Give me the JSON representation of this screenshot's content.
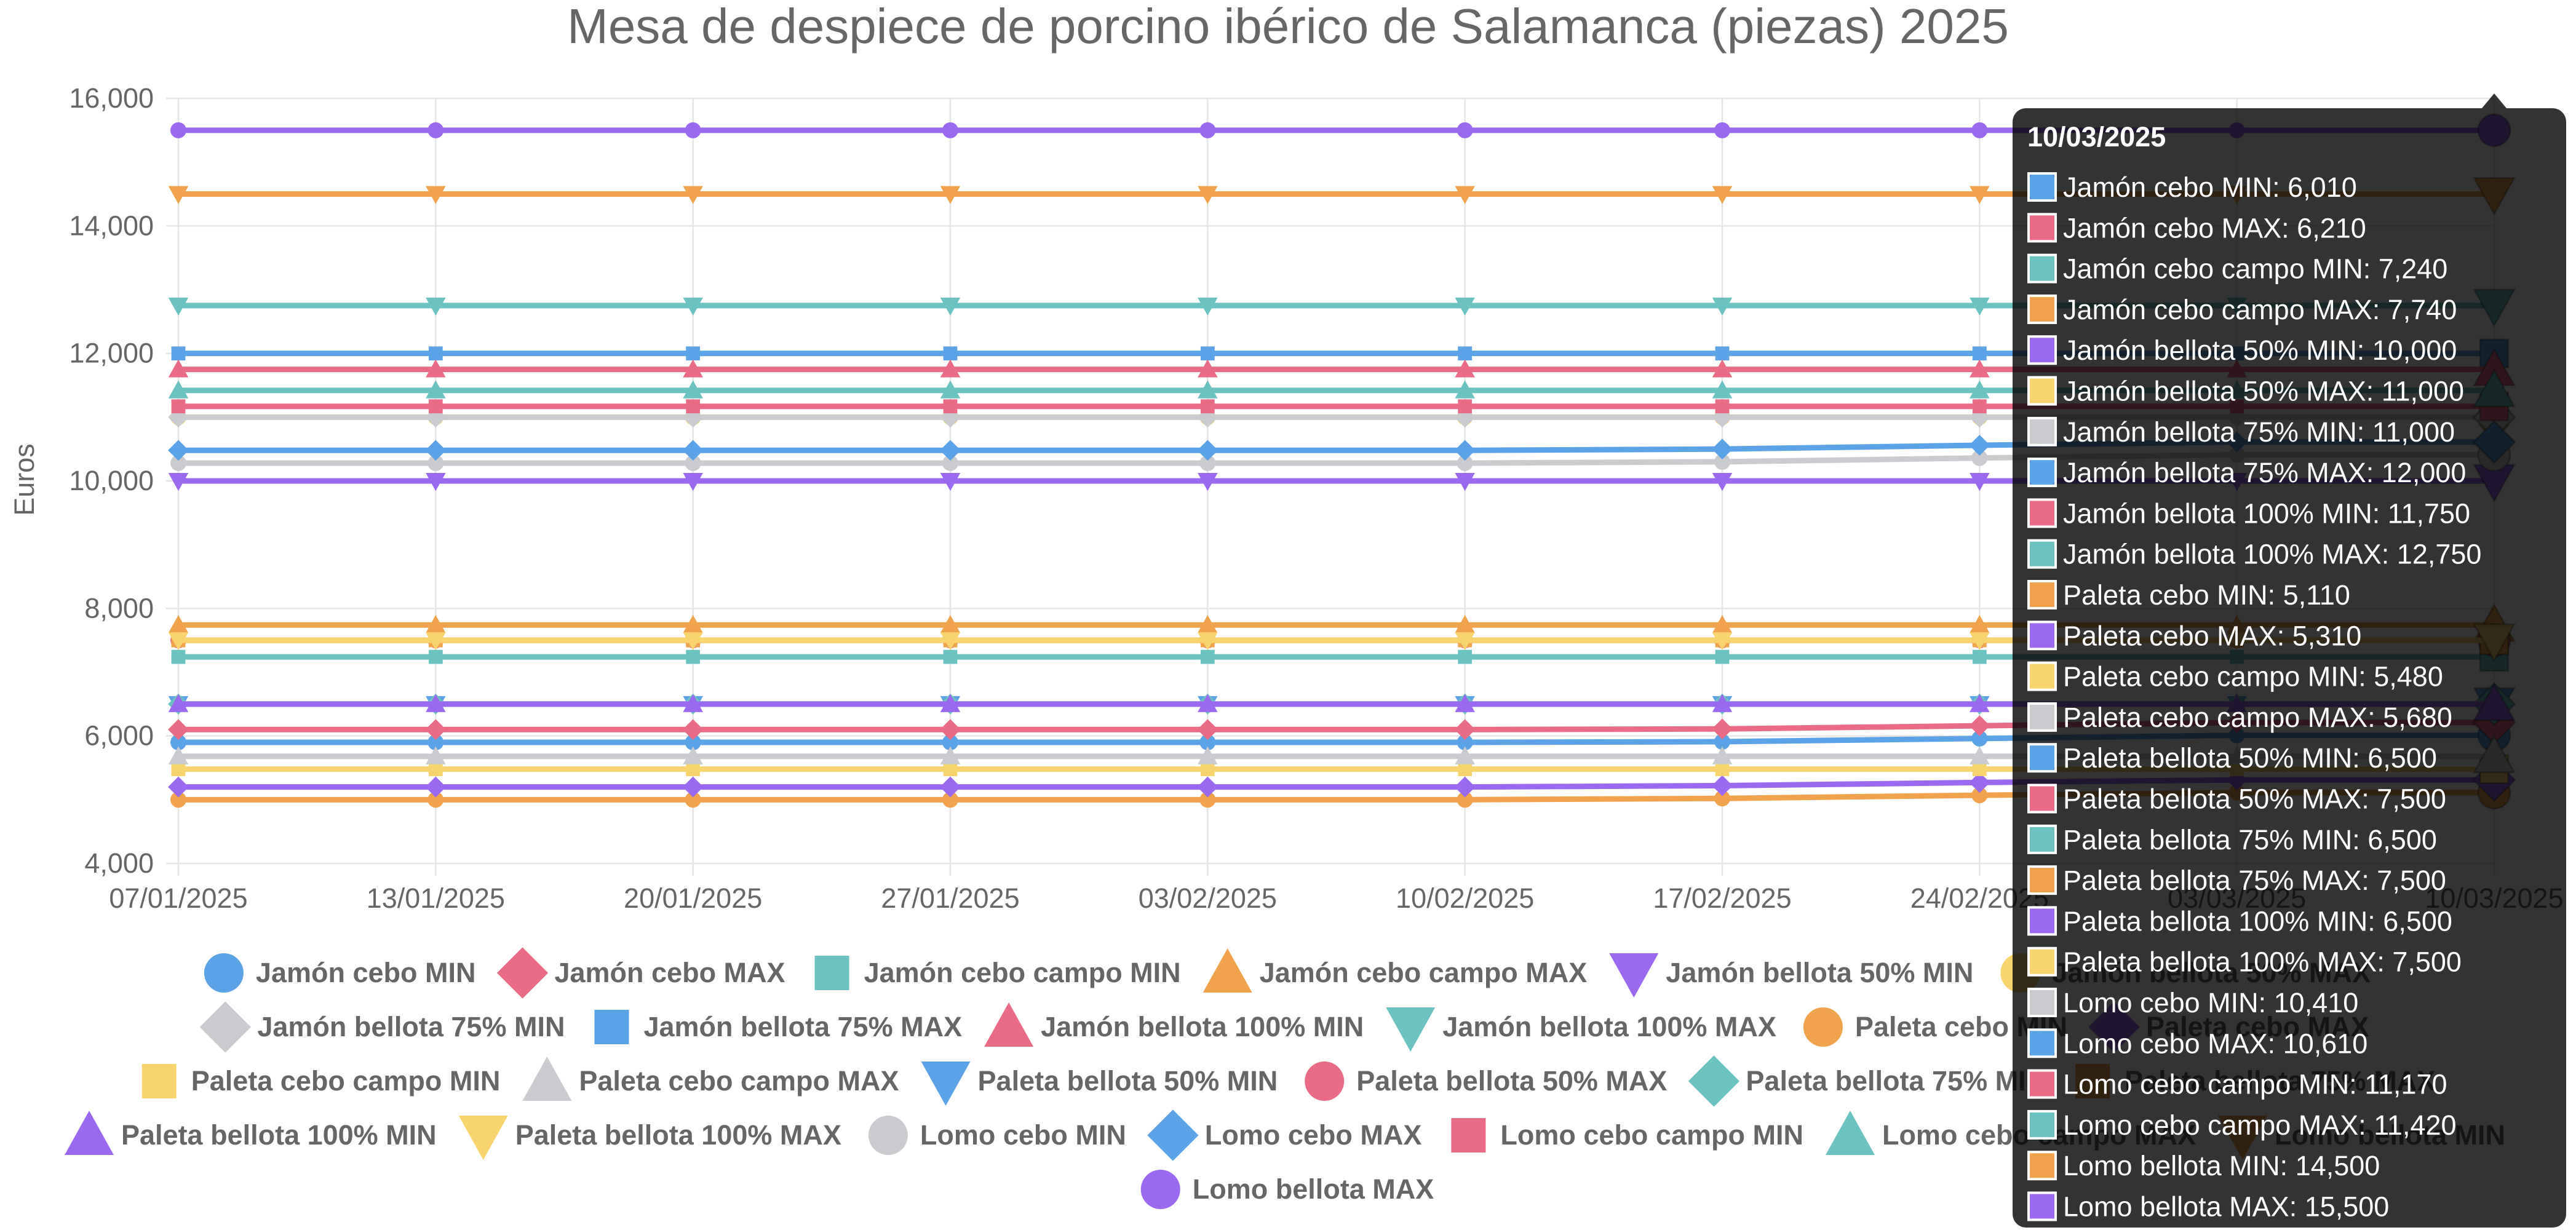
{
  "colors": {
    "blue": "#5ba2e6",
    "red": "#ea6b85",
    "teal": "#6cc1c1",
    "orange": "#f0a24c",
    "purple": "#9b69ef",
    "yellow": "#f9d36e",
    "grey": "#cacbcf",
    "text": "#666666",
    "grid": "#e5e5e5",
    "tooltip_bg": "#000000"
  },
  "chart_data": {
    "type": "line",
    "title": "Mesa de despiece de porcino ibérico de Salamanca (piezas) 2025",
    "ylabel": "Euros",
    "xlabel": "",
    "ylim": [
      4000,
      16000
    ],
    "y_ticks": [
      4000,
      6000,
      8000,
      10000,
      12000,
      14000,
      16000
    ],
    "y_tick_labels": [
      "4,000",
      "6,000",
      "8,000",
      "10,000",
      "12,000",
      "14,000",
      "16,000"
    ],
    "x": [
      "07/01/2025",
      "13/01/2025",
      "20/01/2025",
      "27/01/2025",
      "03/02/2025",
      "10/02/2025",
      "17/02/2025",
      "24/02/2025",
      "03/03/2025",
      "10/03/2025"
    ],
    "x_tick_labels": [
      "07/01/2025",
      "13/01/2025",
      "20/01/2025",
      "27/01/2025",
      "03/02/2025",
      "10/02/2025",
      "17/02/2025",
      "24/02/2025",
      "03/03/2025",
      "10/03/2025"
    ],
    "grid": true,
    "legend_position": "bottom",
    "series": [
      {
        "name": "Jamón cebo MIN",
        "color": "blue",
        "shape": "circle",
        "values": [
          5900,
          5900,
          5900,
          5900,
          5900,
          5900,
          5910,
          5960,
          6010,
          6010
        ]
      },
      {
        "name": "Jamón cebo MAX",
        "color": "red",
        "shape": "diamond",
        "values": [
          6100,
          6100,
          6100,
          6100,
          6100,
          6100,
          6110,
          6160,
          6210,
          6210
        ]
      },
      {
        "name": "Jamón cebo campo MIN",
        "color": "teal",
        "shape": "square",
        "values": [
          7240,
          7240,
          7240,
          7240,
          7240,
          7240,
          7240,
          7240,
          7240,
          7240
        ]
      },
      {
        "name": "Jamón cebo campo MAX",
        "color": "orange",
        "shape": "triangle",
        "values": [
          7740,
          7740,
          7740,
          7740,
          7740,
          7740,
          7740,
          7740,
          7740,
          7740
        ]
      },
      {
        "name": "Jamón bellota 50% MIN",
        "color": "purple",
        "shape": "triangle-down",
        "values": [
          10000,
          10000,
          10000,
          10000,
          10000,
          10000,
          10000,
          10000,
          10000,
          10000
        ]
      },
      {
        "name": "Jamón bellota 50% MAX",
        "color": "yellow",
        "shape": "circle",
        "values": [
          11000,
          11000,
          11000,
          11000,
          11000,
          11000,
          11000,
          11000,
          11000,
          11000
        ]
      },
      {
        "name": "Jamón bellota 75% MIN",
        "color": "grey",
        "shape": "diamond",
        "values": [
          11000,
          11000,
          11000,
          11000,
          11000,
          11000,
          11000,
          11000,
          11000,
          11000
        ]
      },
      {
        "name": "Jamón bellota 75% MAX",
        "color": "blue",
        "shape": "square",
        "values": [
          12000,
          12000,
          12000,
          12000,
          12000,
          12000,
          12000,
          12000,
          12000,
          12000
        ]
      },
      {
        "name": "Jamón bellota 100% MIN",
        "color": "red",
        "shape": "triangle",
        "values": [
          11750,
          11750,
          11750,
          11750,
          11750,
          11750,
          11750,
          11750,
          11750,
          11750
        ]
      },
      {
        "name": "Jamón bellota 100% MAX",
        "color": "teal",
        "shape": "triangle-down",
        "values": [
          12750,
          12750,
          12750,
          12750,
          12750,
          12750,
          12750,
          12750,
          12750,
          12750
        ]
      },
      {
        "name": "Paleta cebo MIN",
        "color": "orange",
        "shape": "circle",
        "values": [
          5000,
          5000,
          5000,
          5000,
          5000,
          5000,
          5020,
          5070,
          5110,
          5110
        ]
      },
      {
        "name": "Paleta cebo MAX",
        "color": "purple",
        "shape": "diamond",
        "values": [
          5200,
          5200,
          5200,
          5200,
          5200,
          5200,
          5220,
          5270,
          5310,
          5310
        ]
      },
      {
        "name": "Paleta cebo campo MIN",
        "color": "yellow",
        "shape": "square",
        "values": [
          5480,
          5480,
          5480,
          5480,
          5480,
          5480,
          5480,
          5480,
          5480,
          5480
        ]
      },
      {
        "name": "Paleta cebo campo MAX",
        "color": "grey",
        "shape": "triangle",
        "values": [
          5680,
          5680,
          5680,
          5680,
          5680,
          5680,
          5680,
          5680,
          5680,
          5680
        ]
      },
      {
        "name": "Paleta bellota 50% MIN",
        "color": "blue",
        "shape": "triangle-down",
        "values": [
          6500,
          6500,
          6500,
          6500,
          6500,
          6500,
          6500,
          6500,
          6500,
          6500
        ]
      },
      {
        "name": "Paleta bellota 50% MAX",
        "color": "red",
        "shape": "circle",
        "values": [
          7500,
          7500,
          7500,
          7500,
          7500,
          7500,
          7500,
          7500,
          7500,
          7500
        ]
      },
      {
        "name": "Paleta bellota 75% MIN",
        "color": "teal",
        "shape": "diamond",
        "values": [
          6500,
          6500,
          6500,
          6500,
          6500,
          6500,
          6500,
          6500,
          6500,
          6500
        ]
      },
      {
        "name": "Paleta bellota 75% MAX",
        "color": "orange",
        "shape": "square",
        "values": [
          7500,
          7500,
          7500,
          7500,
          7500,
          7500,
          7500,
          7500,
          7500,
          7500
        ]
      },
      {
        "name": "Paleta bellota 100% MIN",
        "color": "purple",
        "shape": "triangle",
        "values": [
          6500,
          6500,
          6500,
          6500,
          6500,
          6500,
          6500,
          6500,
          6500,
          6500
        ]
      },
      {
        "name": "Paleta bellota 100% MAX",
        "color": "yellow",
        "shape": "triangle-down",
        "values": [
          7500,
          7500,
          7500,
          7500,
          7500,
          7500,
          7500,
          7500,
          7500,
          7500
        ]
      },
      {
        "name": "Lomo cebo MIN",
        "color": "grey",
        "shape": "circle",
        "values": [
          10280,
          10280,
          10280,
          10280,
          10280,
          10280,
          10300,
          10360,
          10410,
          10410
        ]
      },
      {
        "name": "Lomo cebo MAX",
        "color": "blue",
        "shape": "diamond",
        "values": [
          10480,
          10480,
          10480,
          10480,
          10480,
          10480,
          10500,
          10560,
          10610,
          10610
        ]
      },
      {
        "name": "Lomo cebo campo MIN",
        "color": "red",
        "shape": "square",
        "values": [
          11170,
          11170,
          11170,
          11170,
          11170,
          11170,
          11170,
          11170,
          11170,
          11170
        ]
      },
      {
        "name": "Lomo cebo campo MAX",
        "color": "teal",
        "shape": "triangle",
        "values": [
          11420,
          11420,
          11420,
          11420,
          11420,
          11420,
          11420,
          11420,
          11420,
          11420
        ]
      },
      {
        "name": "Lomo bellota MIN",
        "color": "orange",
        "shape": "triangle-down",
        "values": [
          14500,
          14500,
          14500,
          14500,
          14500,
          14500,
          14500,
          14500,
          14500,
          14500
        ]
      },
      {
        "name": "Lomo bellota MAX",
        "color": "purple",
        "shape": "circle",
        "values": [
          15500,
          15500,
          15500,
          15500,
          15500,
          15500,
          15500,
          15500,
          15500,
          15500
        ]
      }
    ],
    "tooltip": {
      "title": "10/03/2025",
      "items": [
        {
          "label": "Jamón cebo MIN: 6,010",
          "color": "blue"
        },
        {
          "label": "Jamón cebo MAX: 6,210",
          "color": "red"
        },
        {
          "label": "Jamón cebo campo MIN: 7,240",
          "color": "teal"
        },
        {
          "label": "Jamón cebo campo MAX: 7,740",
          "color": "orange"
        },
        {
          "label": "Jamón bellota 50% MIN: 10,000",
          "color": "purple"
        },
        {
          "label": "Jamón bellota 50% MAX: 11,000",
          "color": "yellow"
        },
        {
          "label": "Jamón bellota 75% MIN: 11,000",
          "color": "grey"
        },
        {
          "label": "Jamón bellota 75% MAX: 12,000",
          "color": "blue"
        },
        {
          "label": "Jamón bellota 100% MIN: 11,750",
          "color": "red"
        },
        {
          "label": "Jamón bellota 100% MAX: 12,750",
          "color": "teal"
        },
        {
          "label": "Paleta cebo MIN: 5,110",
          "color": "orange"
        },
        {
          "label": "Paleta cebo MAX: 5,310",
          "color": "purple"
        },
        {
          "label": "Paleta cebo campo MIN: 5,480",
          "color": "yellow"
        },
        {
          "label": "Paleta cebo campo MAX: 5,680",
          "color": "grey"
        },
        {
          "label": "Paleta bellota 50% MIN: 6,500",
          "color": "blue"
        },
        {
          "label": "Paleta bellota 50% MAX: 7,500",
          "color": "red"
        },
        {
          "label": "Paleta bellota 75% MIN: 6,500",
          "color": "teal"
        },
        {
          "label": "Paleta bellota 75% MAX: 7,500",
          "color": "orange"
        },
        {
          "label": "Paleta bellota 100% MIN: 6,500",
          "color": "purple"
        },
        {
          "label": "Paleta bellota 100% MAX: 7,500",
          "color": "yellow"
        },
        {
          "label": "Lomo cebo MIN: 10,410",
          "color": "grey"
        },
        {
          "label": "Lomo cebo MAX: 10,610",
          "color": "blue"
        },
        {
          "label": "Lomo cebo campo MIN: 11,170",
          "color": "red"
        },
        {
          "label": "Lomo cebo campo MAX: 11,420",
          "color": "teal"
        },
        {
          "label": "Lomo bellota MIN: 14,500",
          "color": "orange"
        },
        {
          "label": "Lomo bellota MAX: 15,500",
          "color": "purple"
        }
      ]
    }
  }
}
